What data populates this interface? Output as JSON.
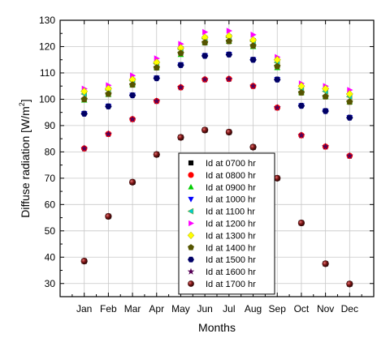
{
  "chart_data": {
    "type": "scatter",
    "xlabel": "Months",
    "ylabel": "Diffuse radiation [W/m",
    "ylabel_sup": "2",
    "ylabel_end": "]",
    "categories": [
      "Jan",
      "Feb",
      "Mar",
      "Apr",
      "May",
      "Jun",
      "Jul",
      "Aug",
      "Sep",
      "Oct",
      "Nov",
      "Dec"
    ],
    "ylim": [
      25,
      130
    ],
    "yticks": [
      30,
      40,
      50,
      60,
      70,
      80,
      90,
      100,
      110,
      120,
      130
    ],
    "grid": true,
    "legend_position": "center",
    "series": [
      {
        "name": "Id at 0700 hr",
        "marker": "square",
        "color": "#000000",
        "values": [
          38.5,
          55.5,
          68.5,
          79,
          85.5,
          88.3,
          87.5,
          81.8,
          70,
          53,
          37.5,
          29.8
        ]
      },
      {
        "name": "Id at 0800 hr",
        "marker": "circle",
        "color": "#ff0000",
        "values": [
          81.3,
          86.8,
          92.4,
          99.3,
          104.5,
          107.5,
          107.7,
          105,
          96.8,
          86.3,
          82,
          78.5
        ]
      },
      {
        "name": "Id at 0900 hr",
        "marker": "triangle-up",
        "color": "#00cc00",
        "values": [
          99.7,
          101.8,
          105.5,
          112,
          117,
          121.5,
          122,
          120,
          112,
          102.5,
          101,
          99
        ]
      },
      {
        "name": "Id at 1000 hr",
        "marker": "triangle-down",
        "color": "#0000ff",
        "values": [
          94.5,
          97.3,
          101.5,
          108,
          113,
          116.5,
          117,
          115,
          107.5,
          97.5,
          95.5,
          93
        ]
      },
      {
        "name": "Id at 1100 hr",
        "marker": "triangle-left",
        "color": "#00cccc",
        "values": [
          102,
          103.5,
          107,
          113.5,
          119,
          123,
          123.5,
          122,
          114,
          104,
          103,
          101
        ]
      },
      {
        "name": "Id at 1200 hr",
        "marker": "triangle-right",
        "color": "#ff00ff",
        "values": [
          104,
          105.3,
          109,
          115.5,
          121,
          125.5,
          126,
          124.5,
          116,
          106,
          105,
          103.5
        ]
      },
      {
        "name": "Id at 1300 hr",
        "marker": "diamond",
        "color": "#ffff00",
        "values": [
          103,
          104,
          107.5,
          114,
          119.5,
          123.5,
          124,
          122.5,
          115,
          105,
          104,
          102
        ]
      },
      {
        "name": "Id at 1400 hr",
        "marker": "pentagon",
        "color": "#555500",
        "values": [
          100,
          102,
          105.5,
          112,
          117.5,
          121.5,
          122,
          120.3,
          112.5,
          102.5,
          101,
          99
        ]
      },
      {
        "name": "Id at 1500 hr",
        "marker": "hexagon",
        "color": "#000066",
        "values": [
          94.5,
          97.3,
          101.5,
          108,
          113,
          116.5,
          117,
          115,
          107.5,
          97.5,
          95.5,
          93
        ]
      },
      {
        "name": "Id at 1600 hr",
        "marker": "star",
        "color": "#550055",
        "values": [
          81.3,
          86.8,
          92.4,
          99.3,
          104.5,
          107.5,
          107.7,
          105,
          96.8,
          86.3,
          82,
          78.5
        ]
      },
      {
        "name": "Id at 1700 hr",
        "marker": "sphere",
        "color": "#8b1a1a",
        "values": [
          38.5,
          55.5,
          68.5,
          79,
          85.5,
          88.3,
          87.5,
          81.8,
          70,
          53,
          37.5,
          29.8
        ]
      }
    ]
  }
}
